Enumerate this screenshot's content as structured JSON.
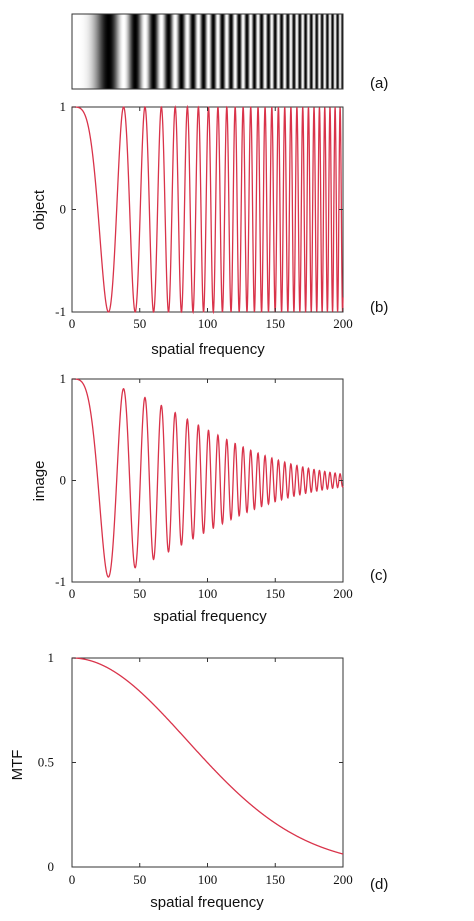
{
  "panel_labels": [
    "(a)",
    "(b)",
    "(c)",
    "(d)"
  ],
  "colors": {
    "curve": "#d9334a",
    "axes": "#333333"
  },
  "chart_data": [
    {
      "type": "image",
      "description_key": "(a)",
      "content": "grayscale sinusoidal grating with increasing spatial frequency (chirp)"
    },
    {
      "type": "line",
      "panel": "(b)",
      "ylabel": "object",
      "xlabel": "spatial frequency",
      "xlim": [
        0,
        200
      ],
      "ylim": [
        -1,
        1
      ],
      "xticks": [
        "0",
        "50",
        "100",
        "150",
        "200"
      ],
      "yticks": [
        "-1",
        "0",
        "1"
      ],
      "series": [
        {
          "function": "cos(pi * x^2 / 725)",
          "x": [
            0,
            26.9,
            38.1,
            46.6,
            53.9,
            60.2,
            65.9,
            71.2,
            76.2,
            80.8,
            85.2,
            89.3,
            93.3,
            97.1,
            100.8,
            104.3,
            107.7,
            111.0,
            114.2,
            117.4,
            120.4,
            123.4,
            126.3,
            129.1,
            131.9,
            134.6,
            137.3,
            139.9,
            142.4,
            145.0,
            147.4,
            149.9,
            152.3,
            154.6,
            157.0,
            159.2,
            161.5,
            163.7,
            165.9,
            168.0,
            170.2,
            172.3,
            174.3,
            176.4,
            178.4,
            180.4,
            182.4,
            184.3,
            186.3,
            188.2,
            190.1,
            191.9,
            193.8,
            195.6,
            197.4,
            199.2
          ],
          "values": [
            1,
            -1,
            1,
            -1,
            1,
            -1,
            1,
            -1,
            1,
            -1,
            1,
            -1,
            1,
            -1,
            1,
            -1,
            1,
            -1,
            1,
            -1,
            1,
            -1,
            1,
            -1,
            1,
            -1,
            1,
            -1,
            1,
            -1,
            1,
            -1,
            1,
            -1,
            1,
            -1,
            1,
            -1,
            1,
            -1,
            1,
            -1,
            1,
            -1,
            1,
            -1,
            1,
            -1,
            1,
            -1,
            1,
            -1,
            1,
            -1,
            1,
            -1
          ]
        }
      ]
    },
    {
      "type": "line",
      "panel": "(c)",
      "ylabel": "image",
      "xlabel": "spatial frequency",
      "xlim": [
        0,
        200
      ],
      "ylim": [
        -1,
        1
      ],
      "xticks": [
        "0",
        "50",
        "100",
        "150",
        "200"
      ],
      "yticks": [
        "-1",
        "0",
        "1"
      ],
      "series": [
        {
          "function": "MTF(x) * cos(pi * x^2 / 725)",
          "x": [
            0,
            27,
            46,
            60,
            71,
            81,
            89,
            97,
            104,
            111,
            117,
            123,
            129,
            135,
            140,
            145,
            150,
            155,
            159,
            164,
            168,
            172,
            176,
            180,
            184,
            188,
            192,
            196,
            200
          ],
          "values": [
            1.0,
            -0.93,
            0.83,
            -0.76,
            0.68,
            -0.62,
            0.57,
            -0.51,
            0.47,
            -0.42,
            0.38,
            -0.34,
            0.31,
            -0.27,
            0.24,
            -0.21,
            0.19,
            -0.17,
            0.15,
            -0.13,
            0.11,
            -0.1,
            0.09,
            -0.08,
            0.07,
            -0.06,
            0.05,
            -0.04,
            0.04
          ]
        }
      ]
    },
    {
      "type": "line",
      "panel": "(d)",
      "ylabel": "MTF",
      "xlabel": "spatial frequency",
      "xlim": [
        0,
        200
      ],
      "ylim": [
        0,
        1
      ],
      "xticks": [
        "0",
        "50",
        "100",
        "150",
        "200"
      ],
      "yticks": [
        "0",
        "0.5",
        "1"
      ],
      "series": [
        {
          "function": "exp(-(x/120)^2)",
          "x": [
            0,
            25,
            50,
            75,
            100,
            125,
            150,
            175,
            200
          ],
          "values": [
            1.0,
            0.96,
            0.84,
            0.68,
            0.5,
            0.34,
            0.21,
            0.12,
            0.06
          ]
        }
      ]
    }
  ]
}
